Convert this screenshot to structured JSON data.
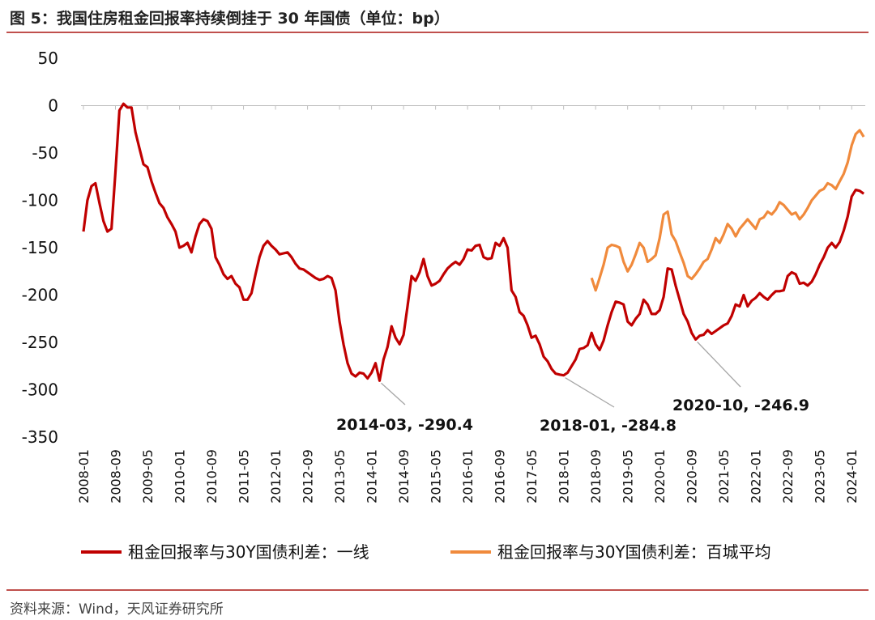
{
  "title": "图 5：我国住房租金回报率持续倒挂于 30 年国债（单位：bp）",
  "source": "资料来源：Wind，天风证券研究所",
  "chart_data": {
    "type": "line",
    "ylim": [
      -350,
      50
    ],
    "yticks": [
      "50",
      "0",
      "-50",
      "-100",
      "-150",
      "-200",
      "-250",
      "-300",
      "-350"
    ],
    "xticks": [
      "2008-01",
      "2008-09",
      "2009-05",
      "2010-01",
      "2010-09",
      "2011-05",
      "2012-01",
      "2012-09",
      "2013-05",
      "2014-01",
      "2014-09",
      "2015-05",
      "2016-01",
      "2016-09",
      "2017-05",
      "2018-01",
      "2018-09",
      "2019-05",
      "2020-01",
      "2020-09",
      "2021-05",
      "2022-01",
      "2022-09",
      "2023-05",
      "2024-01"
    ],
    "colors": {
      "series1": "#c00000",
      "series2": "#f08a3c"
    },
    "series": [
      {
        "name": "租金回报率与30Y国债利差：一线",
        "points": [
          [
            "2008-01",
            -133
          ],
          [
            "2008-02",
            -100
          ],
          [
            "2008-03",
            -85
          ],
          [
            "2008-04",
            -82
          ],
          [
            "2008-05",
            -103
          ],
          [
            "2008-06",
            -122
          ],
          [
            "2008-07",
            -133
          ],
          [
            "2008-08",
            -130
          ],
          [
            "2008-09",
            -70
          ],
          [
            "2008-10",
            -5
          ],
          [
            "2008-11",
            2
          ],
          [
            "2008-12",
            -2
          ],
          [
            "2009-01",
            -2
          ],
          [
            "2009-02",
            -28
          ],
          [
            "2009-03",
            -45
          ],
          [
            "2009-04",
            -62
          ],
          [
            "2009-05",
            -65
          ],
          [
            "2009-06",
            -80
          ],
          [
            "2009-07",
            -92
          ],
          [
            "2009-08",
            -103
          ],
          [
            "2009-09",
            -108
          ],
          [
            "2009-10",
            -118
          ],
          [
            "2009-11",
            -125
          ],
          [
            "2009-12",
            -133
          ],
          [
            "2010-01",
            -150
          ],
          [
            "2010-02",
            -148
          ],
          [
            "2010-03",
            -145
          ],
          [
            "2010-04",
            -155
          ],
          [
            "2010-05",
            -138
          ],
          [
            "2010-06",
            -125
          ],
          [
            "2010-07",
            -120
          ],
          [
            "2010-08",
            -122
          ],
          [
            "2010-09",
            -130
          ],
          [
            "2010-10",
            -160
          ],
          [
            "2010-11",
            -168
          ],
          [
            "2010-12",
            -178
          ],
          [
            "2011-01",
            -183
          ],
          [
            "2011-02",
            -180
          ],
          [
            "2011-03",
            -188
          ],
          [
            "2011-04",
            -192
          ],
          [
            "2011-05",
            -205
          ],
          [
            "2011-06",
            -205
          ],
          [
            "2011-07",
            -198
          ],
          [
            "2011-08",
            -178
          ],
          [
            "2011-09",
            -160
          ],
          [
            "2011-10",
            -148
          ],
          [
            "2011-11",
            -143
          ],
          [
            "2011-12",
            -148
          ],
          [
            "2012-01",
            -152
          ],
          [
            "2012-02",
            -157
          ],
          [
            "2012-03",
            -156
          ],
          [
            "2012-04",
            -155
          ],
          [
            "2012-05",
            -160
          ],
          [
            "2012-06",
            -167
          ],
          [
            "2012-07",
            -172
          ],
          [
            "2012-08",
            -173
          ],
          [
            "2012-09",
            -176
          ],
          [
            "2012-10",
            -179
          ],
          [
            "2012-11",
            -182
          ],
          [
            "2012-12",
            -184
          ],
          [
            "2013-01",
            -183
          ],
          [
            "2013-02",
            -180
          ],
          [
            "2013-03",
            -182
          ],
          [
            "2013-04",
            -195
          ],
          [
            "2013-05",
            -228
          ],
          [
            "2013-06",
            -252
          ],
          [
            "2013-07",
            -272
          ],
          [
            "2013-08",
            -283
          ],
          [
            "2013-09",
            -286
          ],
          [
            "2013-10",
            -282
          ],
          [
            "2013-11",
            -283
          ],
          [
            "2013-12",
            -288
          ],
          [
            "2014-01",
            -282
          ],
          [
            "2014-02",
            -272
          ],
          [
            "2014-03",
            -290.4
          ],
          [
            "2014-04",
            -268
          ],
          [
            "2014-05",
            -255
          ],
          [
            "2014-06",
            -233
          ],
          [
            "2014-07",
            -245
          ],
          [
            "2014-08",
            -252
          ],
          [
            "2014-09",
            -242
          ],
          [
            "2014-10",
            -212
          ],
          [
            "2014-11",
            -180
          ],
          [
            "2014-12",
            -185
          ],
          [
            "2015-01",
            -176
          ],
          [
            "2015-02",
            -162
          ],
          [
            "2015-03",
            -180
          ],
          [
            "2015-04",
            -190
          ],
          [
            "2015-05",
            -188
          ],
          [
            "2015-06",
            -185
          ],
          [
            "2015-07",
            -178
          ],
          [
            "2015-08",
            -172
          ],
          [
            "2015-09",
            -168
          ],
          [
            "2015-10",
            -165
          ],
          [
            "2015-11",
            -168
          ],
          [
            "2015-12",
            -162
          ],
          [
            "2016-01",
            -152
          ],
          [
            "2016-02",
            -153
          ],
          [
            "2016-03",
            -148
          ],
          [
            "2016-04",
            -147
          ],
          [
            "2016-05",
            -160
          ],
          [
            "2016-06",
            -162
          ],
          [
            "2016-07",
            -161
          ],
          [
            "2016-08",
            -145
          ],
          [
            "2016-09",
            -148
          ],
          [
            "2016-10",
            -140
          ],
          [
            "2016-11",
            -150
          ],
          [
            "2016-12",
            -195
          ],
          [
            "2017-01",
            -202
          ],
          [
            "2017-02",
            -218
          ],
          [
            "2017-03",
            -222
          ],
          [
            "2017-04",
            -232
          ],
          [
            "2017-05",
            -245
          ],
          [
            "2017-06",
            -243
          ],
          [
            "2017-07",
            -252
          ],
          [
            "2017-08",
            -265
          ],
          [
            "2017-09",
            -270
          ],
          [
            "2017-10",
            -278
          ],
          [
            "2017-11",
            -283
          ],
          [
            "2017-12",
            -284
          ],
          [
            "2018-01",
            -284.8
          ],
          [
            "2018-02",
            -282
          ],
          [
            "2018-03",
            -275
          ],
          [
            "2018-04",
            -268
          ],
          [
            "2018-05",
            -257
          ],
          [
            "2018-06",
            -256
          ],
          [
            "2018-07",
            -253
          ],
          [
            "2018-08",
            -240
          ],
          [
            "2018-09",
            -252
          ],
          [
            "2018-10",
            -258
          ],
          [
            "2018-11",
            -248
          ],
          [
            "2018-12",
            -232
          ],
          [
            "2019-01",
            -218
          ],
          [
            "2019-02",
            -207
          ],
          [
            "2019-03",
            -208
          ],
          [
            "2019-04",
            -210
          ],
          [
            "2019-05",
            -228
          ],
          [
            "2019-06",
            -232
          ],
          [
            "2019-07",
            -225
          ],
          [
            "2019-08",
            -220
          ],
          [
            "2019-09",
            -205
          ],
          [
            "2019-10",
            -210
          ],
          [
            "2019-11",
            -220
          ],
          [
            "2019-12",
            -220
          ],
          [
            "2020-01",
            -216
          ],
          [
            "2020-02",
            -202
          ],
          [
            "2020-03",
            -172
          ],
          [
            "2020-04",
            -173
          ],
          [
            "2020-05",
            -190
          ],
          [
            "2020-06",
            -205
          ],
          [
            "2020-07",
            -220
          ],
          [
            "2020-08",
            -228
          ],
          [
            "2020-09",
            -240
          ],
          [
            "2020-10",
            -246.9
          ],
          [
            "2020-11",
            -243
          ],
          [
            "2020-12",
            -242
          ],
          [
            "2021-01",
            -237
          ],
          [
            "2021-02",
            -241
          ],
          [
            "2021-03",
            -238
          ],
          [
            "2021-04",
            -235
          ],
          [
            "2021-05",
            -232
          ],
          [
            "2021-06",
            -230
          ],
          [
            "2021-07",
            -222
          ],
          [
            "2021-08",
            -210
          ],
          [
            "2021-09",
            -212
          ],
          [
            "2021-10",
            -200
          ],
          [
            "2021-11",
            -212
          ],
          [
            "2021-12",
            -206
          ],
          [
            "2022-01",
            -203
          ],
          [
            "2022-02",
            -198
          ],
          [
            "2022-03",
            -202
          ],
          [
            "2022-04",
            -205
          ],
          [
            "2022-05",
            -200
          ],
          [
            "2022-06",
            -196
          ],
          [
            "2022-07",
            -196
          ],
          [
            "2022-08",
            -195
          ],
          [
            "2022-09",
            -180
          ],
          [
            "2022-10",
            -176
          ],
          [
            "2022-11",
            -178
          ],
          [
            "2022-12",
            -188
          ],
          [
            "2023-01",
            -187
          ],
          [
            "2023-02",
            -190
          ],
          [
            "2023-03",
            -186
          ],
          [
            "2023-04",
            -178
          ],
          [
            "2023-05",
            -168
          ],
          [
            "2023-06",
            -160
          ],
          [
            "2023-07",
            -150
          ],
          [
            "2023-08",
            -145
          ],
          [
            "2023-09",
            -150
          ],
          [
            "2023-10",
            -144
          ],
          [
            "2023-11",
            -132
          ],
          [
            "2023-12",
            -117
          ],
          [
            "2024-01",
            -96
          ],
          [
            "2024-02",
            -89
          ],
          [
            "2024-03",
            -90
          ],
          [
            "2024-04",
            -93
          ]
        ]
      },
      {
        "name": "租金回报率与30Y国债利差：百城平均",
        "points": [
          [
            "2018-08",
            -182
          ],
          [
            "2018-09",
            -195
          ],
          [
            "2018-10",
            -182
          ],
          [
            "2018-11",
            -168
          ],
          [
            "2018-12",
            -150
          ],
          [
            "2019-01",
            -147
          ],
          [
            "2019-02",
            -148
          ],
          [
            "2019-03",
            -150
          ],
          [
            "2019-04",
            -165
          ],
          [
            "2019-05",
            -175
          ],
          [
            "2019-06",
            -168
          ],
          [
            "2019-07",
            -157
          ],
          [
            "2019-08",
            -145
          ],
          [
            "2019-09",
            -150
          ],
          [
            "2019-10",
            -165
          ],
          [
            "2019-11",
            -162
          ],
          [
            "2019-12",
            -158
          ],
          [
            "2020-01",
            -140
          ],
          [
            "2020-02",
            -115
          ],
          [
            "2020-03",
            -112
          ],
          [
            "2020-04",
            -136
          ],
          [
            "2020-05",
            -143
          ],
          [
            "2020-06",
            -155
          ],
          [
            "2020-07",
            -166
          ],
          [
            "2020-08",
            -180
          ],
          [
            "2020-09",
            -183
          ],
          [
            "2020-10",
            -178
          ],
          [
            "2020-11",
            -172
          ],
          [
            "2020-12",
            -165
          ],
          [
            "2021-01",
            -162
          ],
          [
            "2021-02",
            -152
          ],
          [
            "2021-03",
            -140
          ],
          [
            "2021-04",
            -145
          ],
          [
            "2021-05",
            -136
          ],
          [
            "2021-06",
            -125
          ],
          [
            "2021-07",
            -130
          ],
          [
            "2021-08",
            -138
          ],
          [
            "2021-09",
            -130
          ],
          [
            "2021-10",
            -125
          ],
          [
            "2021-11",
            -120
          ],
          [
            "2021-12",
            -125
          ],
          [
            "2022-01",
            -130
          ],
          [
            "2022-02",
            -120
          ],
          [
            "2022-03",
            -118
          ],
          [
            "2022-04",
            -112
          ],
          [
            "2022-05",
            -115
          ],
          [
            "2022-06",
            -110
          ],
          [
            "2022-07",
            -102
          ],
          [
            "2022-08",
            -105
          ],
          [
            "2022-09",
            -110
          ],
          [
            "2022-10",
            -115
          ],
          [
            "2022-11",
            -113
          ],
          [
            "2022-12",
            -120
          ],
          [
            "2023-01",
            -115
          ],
          [
            "2023-02",
            -108
          ],
          [
            "2023-03",
            -100
          ],
          [
            "2023-04",
            -95
          ],
          [
            "2023-05",
            -90
          ],
          [
            "2023-06",
            -88
          ],
          [
            "2023-07",
            -82
          ],
          [
            "2023-08",
            -84
          ],
          [
            "2023-09",
            -88
          ],
          [
            "2023-10",
            -80
          ],
          [
            "2023-11",
            -72
          ],
          [
            "2023-12",
            -60
          ],
          [
            "2024-01",
            -42
          ],
          [
            "2024-02",
            -30
          ],
          [
            "2024-03",
            -26
          ],
          [
            "2024-04",
            -33
          ]
        ]
      }
    ],
    "annotations": [
      {
        "label": "2014-03, -290.4",
        "point": [
          "2014-03",
          -290.4
        ]
      },
      {
        "label": "2018-01, -284.8",
        "point": [
          "2018-01",
          -284.8
        ]
      },
      {
        "label": "2020-10, -246.9",
        "point": [
          "2020-10",
          -246.9
        ]
      }
    ],
    "legend_position": "bottom"
  }
}
